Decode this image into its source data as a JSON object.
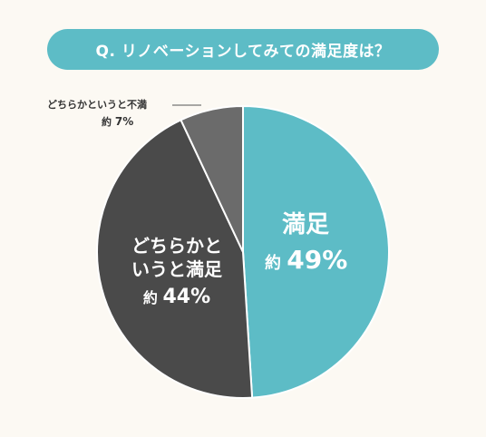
{
  "title": "Q. リノベーションしてみての満足度は？",
  "approx_prefix": "約",
  "chart_data": {
    "type": "pie",
    "title": "Q. リノベーションしてみての満足度は？",
    "slices": [
      {
        "label": "満足",
        "label_line1": "満足",
        "label_line2": "",
        "value": 49,
        "value_text": "49%",
        "color": "#5dbcc6"
      },
      {
        "label": "どちらかというと満足",
        "label_line1": "どちらかと",
        "label_line2": "いうと満足",
        "value": 44,
        "value_text": "44%",
        "color": "#4a4a4a"
      },
      {
        "label": "どちらかというと不満",
        "label_line1": "どちらかというと不満",
        "label_line2": "",
        "value": 7,
        "value_text": "7%",
        "color": "#6b6b6b"
      }
    ],
    "start_angle": "12 o'clock",
    "direction": "clockwise",
    "legend": "none"
  }
}
